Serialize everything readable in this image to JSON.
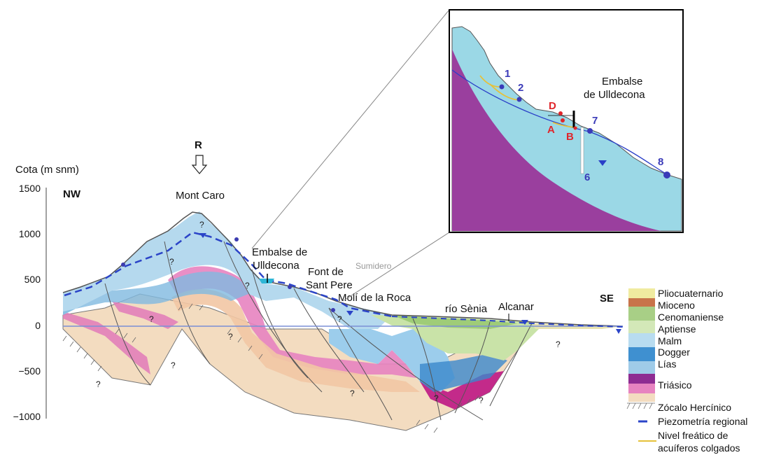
{
  "axis": {
    "label": "Cota (m snm)",
    "ticks": [
      "1500",
      "1000",
      "500",
      "0",
      "−500",
      "−1000"
    ]
  },
  "orientation": {
    "left": "NW",
    "right": "SE"
  },
  "recharge_marker": "R",
  "places": {
    "mont_caro": "Mont Caro",
    "embalse_line1": "Embalse de",
    "embalse_line2": "Ulldecona",
    "font_line1": "Font de",
    "font_line2": "Sant Pere",
    "sumidero": "Sumidero",
    "moli": "Molí de la Roca",
    "rio": "río Sènia",
    "alcanar": "Alcanar"
  },
  "unknown_mark": "?",
  "inset": {
    "title_line1": "Embalse",
    "title_line2": "de Ulldecona",
    "points_blue": [
      "1",
      "2",
      "7",
      "8",
      "6"
    ],
    "points_red": [
      "D",
      "A",
      "B"
    ],
    "colors": {
      "rock": "#9bd8e6",
      "basement": "#9a3f9e",
      "water_line": "#2a3fc8",
      "perched": "#e6c13a"
    }
  },
  "legend": {
    "items": [
      {
        "label": "Pliocuaternario",
        "color": "#f0eba0"
      },
      {
        "label": "Mioceno",
        "color": "#c8744a"
      },
      {
        "label": "Cenomaniense",
        "color": "#a8cf86"
      },
      {
        "label": "Aptiense",
        "color": "#d3e8b8"
      },
      {
        "label": "Malm",
        "color": "#b8dcf0"
      },
      {
        "label": "Dogger",
        "color": "#3f90d0"
      },
      {
        "label": "Lías",
        "color": "#9fcbe8"
      },
      {
        "label": "Triásico",
        "color": "#c048a8"
      },
      {
        "label": "Zócalo Hercínico",
        "color": "#cfcfcf"
      }
    ],
    "piezometria": "Piezometría regional",
    "nivel_line1": "Nivel freático de",
    "nivel_line2": "acuíferos colgados",
    "piezometria_color": "#2b44c8",
    "nivel_color": "#e6c13a"
  }
}
